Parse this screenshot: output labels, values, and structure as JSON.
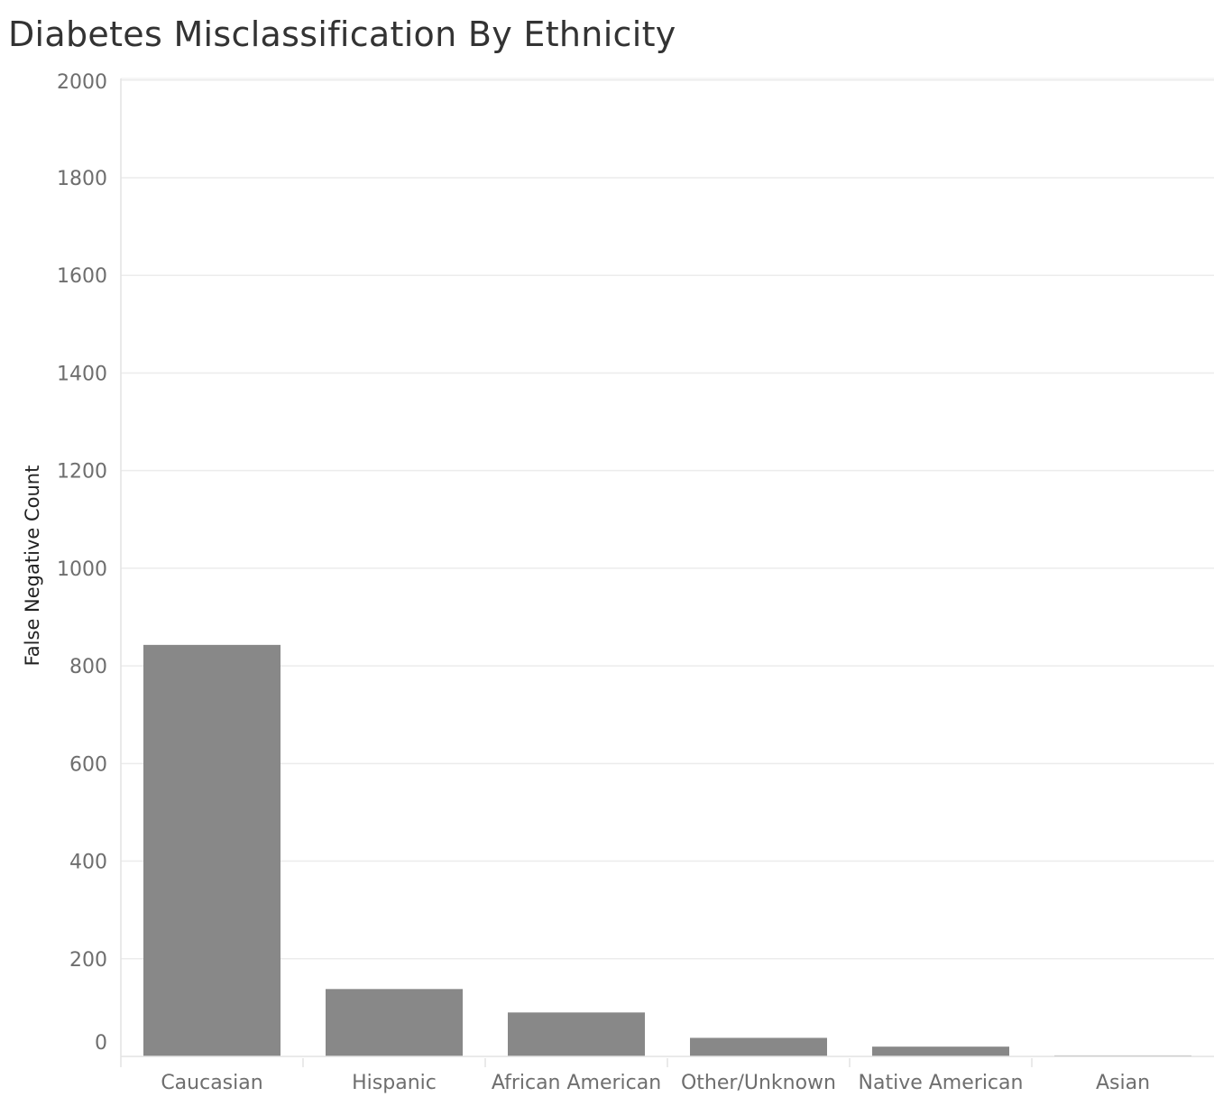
{
  "chart_data": {
    "type": "bar",
    "title": "Diabetes Misclassification By Ethnicity",
    "xlabel": "",
    "ylabel": "False Negative Count",
    "categories": [
      "Caucasian",
      "Hispanic",
      "African American",
      "Other/Unknown",
      "Native American",
      "Asian"
    ],
    "values": [
      843,
      138,
      90,
      38,
      20,
      2
    ],
    "ylim": [
      0,
      2000
    ],
    "yticks": [
      "0",
      "200",
      "400",
      "600",
      "800",
      "1000",
      "1200",
      "1400",
      "1600",
      "1800",
      "2000"
    ],
    "grid": true,
    "legend": "none",
    "bar_color": "#888888",
    "grid_color": "#ececec"
  }
}
